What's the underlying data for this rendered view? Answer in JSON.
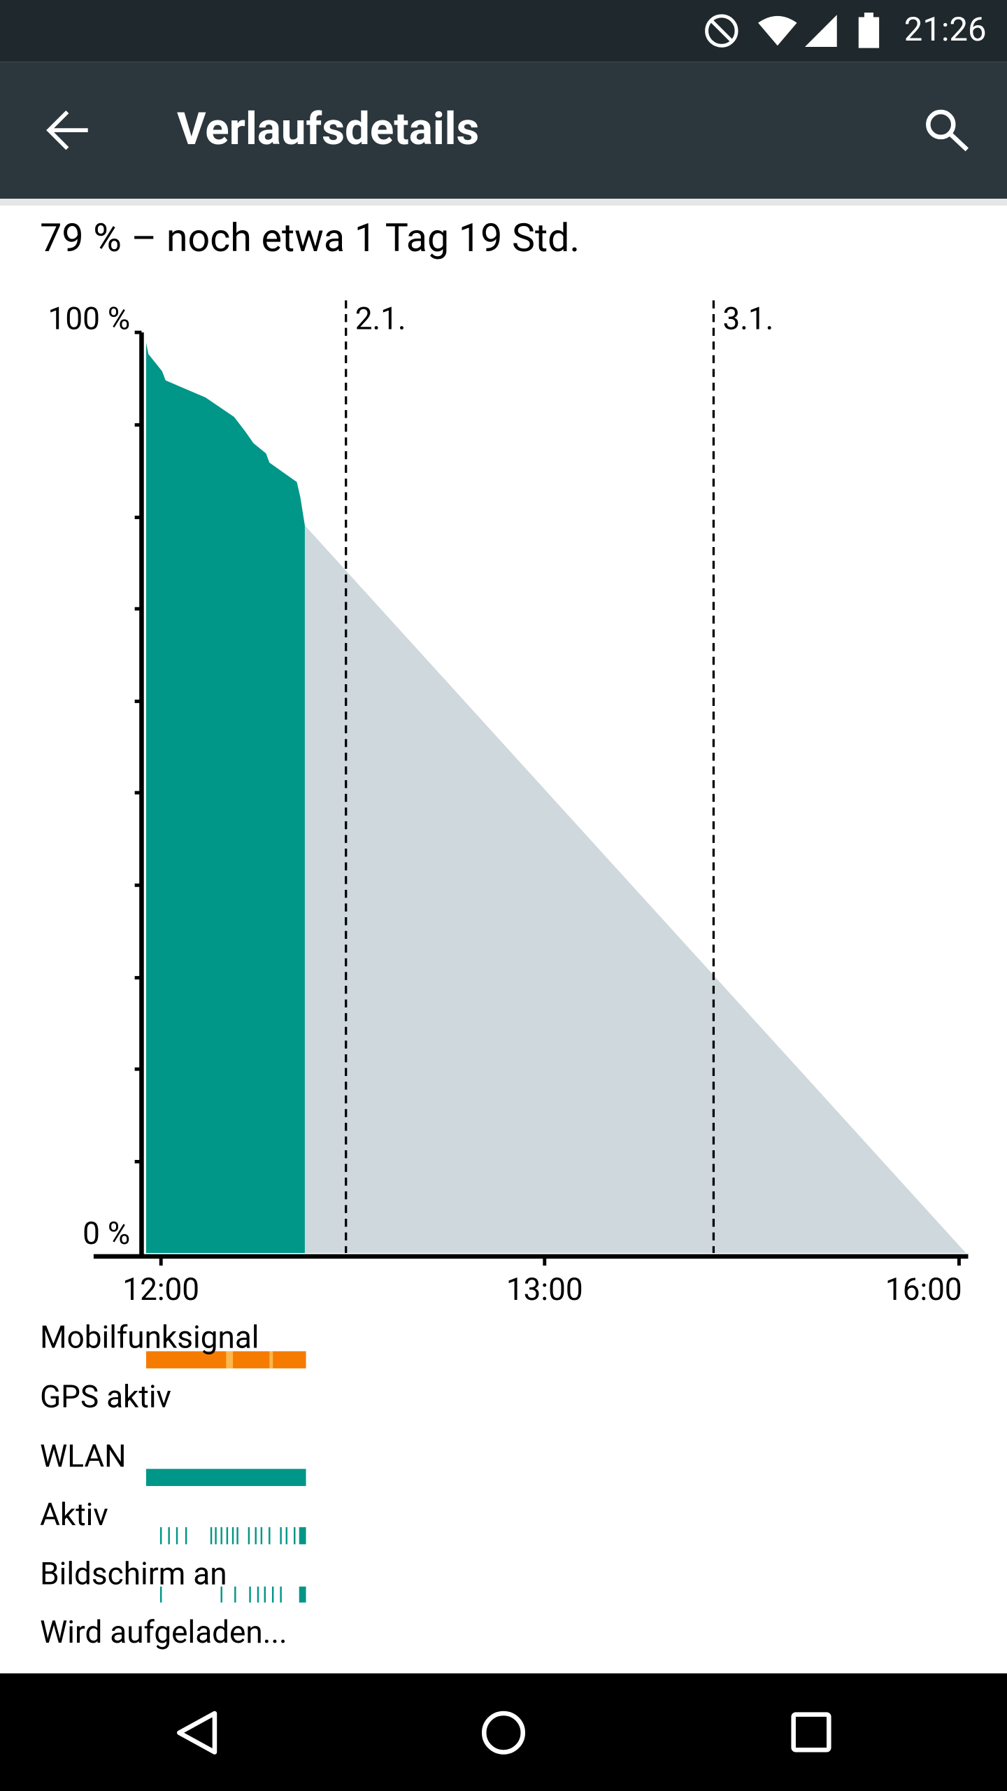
{
  "status_bar": {
    "time": "21:26"
  },
  "toolbar": {
    "title": "Verlaufsdetails"
  },
  "summary": "79 % – noch etwa 1 Tag 19 Std.",
  "chart": {
    "y_labels": [
      "100 %",
      "0 %"
    ],
    "date_labels": [
      "2.1.",
      "3.1."
    ],
    "x_labels": [
      "12:00",
      "13:00",
      "16:00"
    ]
  },
  "rows": [
    "Mobilfunksignal",
    "GPS aktiv",
    "WLAN",
    "Aktiv",
    "Bildschirm an",
    "Wird aufgeladen..."
  ]
}
